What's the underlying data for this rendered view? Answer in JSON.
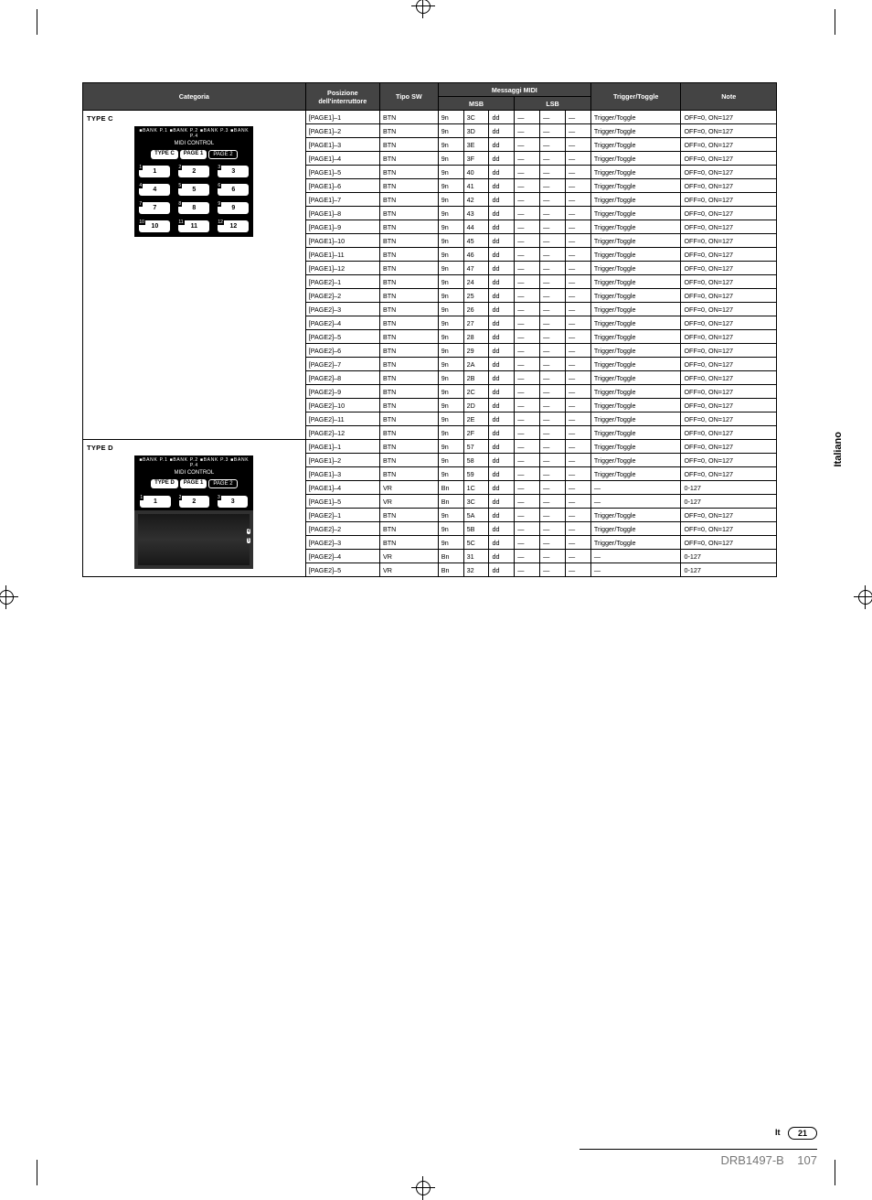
{
  "headers": {
    "categoria": "Categoria",
    "posizione": "Posizione dell'interruttore",
    "tipo_sw": "Tipo SW",
    "messaggi_midi": "Messaggi MIDI",
    "msb": "MSB",
    "lsb": "LSB",
    "trigger_toggle": "Trigger/Toggle",
    "note": "Note"
  },
  "em": "—",
  "side_tab": "Italiano",
  "page_lang": "It",
  "page_num": "21",
  "doc_code": "DRB1497-B",
  "doc_page": "107",
  "panel_c": {
    "type_label": "TYPE C",
    "banks": "■BANK P.1 ■BANK P.2 ■BANK P.3 ■BANK P.4",
    "sub": "MIDI CONTROL",
    "tabs": [
      "TYPE C",
      "PAGE 1",
      "PAGE 2"
    ],
    "btns": [
      "1",
      "2",
      "3",
      "4",
      "5",
      "6",
      "7",
      "8",
      "9",
      "10",
      "11",
      "12"
    ]
  },
  "panel_d": {
    "type_label": "TYPE D",
    "banks": "■BANK P.1 ■BANK P.2 ■BANK P.3 ■BANK P.4",
    "sub": "MIDI CONTROL",
    "tabs": [
      "TYPE D",
      "PAGE 1",
      "PAGE 2"
    ],
    "btns": [
      "1",
      "2",
      "3"
    ],
    "vr": [
      "4",
      "5"
    ]
  },
  "rows_c": [
    {
      "pos": "[PAGE1]–1",
      "sw": "BTN",
      "m": [
        "9n",
        "3C",
        "dd",
        "—",
        "—",
        "—"
      ],
      "tt": "Trigger/Toggle",
      "nt": "OFF=0, ON=127"
    },
    {
      "pos": "[PAGE1]–2",
      "sw": "BTN",
      "m": [
        "9n",
        "3D",
        "dd",
        "—",
        "—",
        "—"
      ],
      "tt": "Trigger/Toggle",
      "nt": "OFF=0, ON=127"
    },
    {
      "pos": "[PAGE1]–3",
      "sw": "BTN",
      "m": [
        "9n",
        "3E",
        "dd",
        "—",
        "—",
        "—"
      ],
      "tt": "Trigger/Toggle",
      "nt": "OFF=0, ON=127"
    },
    {
      "pos": "[PAGE1]–4",
      "sw": "BTN",
      "m": [
        "9n",
        "3F",
        "dd",
        "—",
        "—",
        "—"
      ],
      "tt": "Trigger/Toggle",
      "nt": "OFF=0, ON=127"
    },
    {
      "pos": "[PAGE1]–5",
      "sw": "BTN",
      "m": [
        "9n",
        "40",
        "dd",
        "—",
        "—",
        "—"
      ],
      "tt": "Trigger/Toggle",
      "nt": "OFF=0, ON=127"
    },
    {
      "pos": "[PAGE1]–6",
      "sw": "BTN",
      "m": [
        "9n",
        "41",
        "dd",
        "—",
        "—",
        "—"
      ],
      "tt": "Trigger/Toggle",
      "nt": "OFF=0, ON=127"
    },
    {
      "pos": "[PAGE1]–7",
      "sw": "BTN",
      "m": [
        "9n",
        "42",
        "dd",
        "—",
        "—",
        "—"
      ],
      "tt": "Trigger/Toggle",
      "nt": "OFF=0, ON=127"
    },
    {
      "pos": "[PAGE1]–8",
      "sw": "BTN",
      "m": [
        "9n",
        "43",
        "dd",
        "—",
        "—",
        "—"
      ],
      "tt": "Trigger/Toggle",
      "nt": "OFF=0, ON=127"
    },
    {
      "pos": "[PAGE1]–9",
      "sw": "BTN",
      "m": [
        "9n",
        "44",
        "dd",
        "—",
        "—",
        "—"
      ],
      "tt": "Trigger/Toggle",
      "nt": "OFF=0, ON=127"
    },
    {
      "pos": "[PAGE1]–10",
      "sw": "BTN",
      "m": [
        "9n",
        "45",
        "dd",
        "—",
        "—",
        "—"
      ],
      "tt": "Trigger/Toggle",
      "nt": "OFF=0, ON=127"
    },
    {
      "pos": "[PAGE1]–11",
      "sw": "BTN",
      "m": [
        "9n",
        "46",
        "dd",
        "—",
        "—",
        "—"
      ],
      "tt": "Trigger/Toggle",
      "nt": "OFF=0, ON=127"
    },
    {
      "pos": "[PAGE1]–12",
      "sw": "BTN",
      "m": [
        "9n",
        "47",
        "dd",
        "—",
        "—",
        "—"
      ],
      "tt": "Trigger/Toggle",
      "nt": "OFF=0, ON=127"
    },
    {
      "pos": "[PAGE2]–1",
      "sw": "BTN",
      "m": [
        "9n",
        "24",
        "dd",
        "—",
        "—",
        "—"
      ],
      "tt": "Trigger/Toggle",
      "nt": "OFF=0, ON=127"
    },
    {
      "pos": "[PAGE2]–2",
      "sw": "BTN",
      "m": [
        "9n",
        "25",
        "dd",
        "—",
        "—",
        "—"
      ],
      "tt": "Trigger/Toggle",
      "nt": "OFF=0, ON=127"
    },
    {
      "pos": "[PAGE2]–3",
      "sw": "BTN",
      "m": [
        "9n",
        "26",
        "dd",
        "—",
        "—",
        "—"
      ],
      "tt": "Trigger/Toggle",
      "nt": "OFF=0, ON=127"
    },
    {
      "pos": "[PAGE2]–4",
      "sw": "BTN",
      "m": [
        "9n",
        "27",
        "dd",
        "—",
        "—",
        "—"
      ],
      "tt": "Trigger/Toggle",
      "nt": "OFF=0, ON=127"
    },
    {
      "pos": "[PAGE2]–5",
      "sw": "BTN",
      "m": [
        "9n",
        "28",
        "dd",
        "—",
        "—",
        "—"
      ],
      "tt": "Trigger/Toggle",
      "nt": "OFF=0, ON=127"
    },
    {
      "pos": "[PAGE2]–6",
      "sw": "BTN",
      "m": [
        "9n",
        "29",
        "dd",
        "—",
        "—",
        "—"
      ],
      "tt": "Trigger/Toggle",
      "nt": "OFF=0, ON=127"
    },
    {
      "pos": "[PAGE2]–7",
      "sw": "BTN",
      "m": [
        "9n",
        "2A",
        "dd",
        "—",
        "—",
        "—"
      ],
      "tt": "Trigger/Toggle",
      "nt": "OFF=0, ON=127"
    },
    {
      "pos": "[PAGE2]–8",
      "sw": "BTN",
      "m": [
        "9n",
        "2B",
        "dd",
        "—",
        "—",
        "—"
      ],
      "tt": "Trigger/Toggle",
      "nt": "OFF=0, ON=127"
    },
    {
      "pos": "[PAGE2]–9",
      "sw": "BTN",
      "m": [
        "9n",
        "2C",
        "dd",
        "—",
        "—",
        "—"
      ],
      "tt": "Trigger/Toggle",
      "nt": "OFF=0, ON=127"
    },
    {
      "pos": "[PAGE2]–10",
      "sw": "BTN",
      "m": [
        "9n",
        "2D",
        "dd",
        "—",
        "—",
        "—"
      ],
      "tt": "Trigger/Toggle",
      "nt": "OFF=0, ON=127"
    },
    {
      "pos": "[PAGE2]–11",
      "sw": "BTN",
      "m": [
        "9n",
        "2E",
        "dd",
        "—",
        "—",
        "—"
      ],
      "tt": "Trigger/Toggle",
      "nt": "OFF=0, ON=127"
    },
    {
      "pos": "[PAGE2]–12",
      "sw": "BTN",
      "m": [
        "9n",
        "2F",
        "dd",
        "—",
        "—",
        "—"
      ],
      "tt": "Trigger/Toggle",
      "nt": "OFF=0, ON=127"
    }
  ],
  "rows_d": [
    {
      "pos": "[PAGE1]–1",
      "sw": "BTN",
      "m": [
        "9n",
        "57",
        "dd",
        "—",
        "—",
        "—"
      ],
      "tt": "Trigger/Toggle",
      "nt": "OFF=0, ON=127"
    },
    {
      "pos": "[PAGE1]–2",
      "sw": "BTN",
      "m": [
        "9n",
        "58",
        "dd",
        "—",
        "—",
        "—"
      ],
      "tt": "Trigger/Toggle",
      "nt": "OFF=0, ON=127"
    },
    {
      "pos": "[PAGE1]–3",
      "sw": "BTN",
      "m": [
        "9n",
        "59",
        "dd",
        "—",
        "—",
        "—"
      ],
      "tt": "Trigger/Toggle",
      "nt": "OFF=0, ON=127"
    },
    {
      "pos": "[PAGE1]–4",
      "sw": "VR",
      "m": [
        "Bn",
        "1C",
        "dd",
        "—",
        "—",
        "—"
      ],
      "tt": "—",
      "nt": "0-127"
    },
    {
      "pos": "[PAGE1]–5",
      "sw": "VR",
      "m": [
        "Bn",
        "3C",
        "dd",
        "—",
        "—",
        "—"
      ],
      "tt": "—",
      "nt": "0-127"
    },
    {
      "pos": "[PAGE2]–1",
      "sw": "BTN",
      "m": [
        "9n",
        "5A",
        "dd",
        "—",
        "—",
        "—"
      ],
      "tt": "Trigger/Toggle",
      "nt": "OFF=0, ON=127"
    },
    {
      "pos": "[PAGE2]–2",
      "sw": "BTN",
      "m": [
        "9n",
        "5B",
        "dd",
        "—",
        "—",
        "—"
      ],
      "tt": "Trigger/Toggle",
      "nt": "OFF=0, ON=127"
    },
    {
      "pos": "[PAGE2]–3",
      "sw": "BTN",
      "m": [
        "9n",
        "5C",
        "dd",
        "—",
        "—",
        "—"
      ],
      "tt": "Trigger/Toggle",
      "nt": "OFF=0, ON=127"
    },
    {
      "pos": "[PAGE2]–4",
      "sw": "VR",
      "m": [
        "Bn",
        "31",
        "dd",
        "—",
        "—",
        "—"
      ],
      "tt": "—",
      "nt": "0-127"
    },
    {
      "pos": "[PAGE2]–5",
      "sw": "VR",
      "m": [
        "Bn",
        "32",
        "dd",
        "—",
        "—",
        "—"
      ],
      "tt": "—",
      "nt": "0-127"
    }
  ]
}
